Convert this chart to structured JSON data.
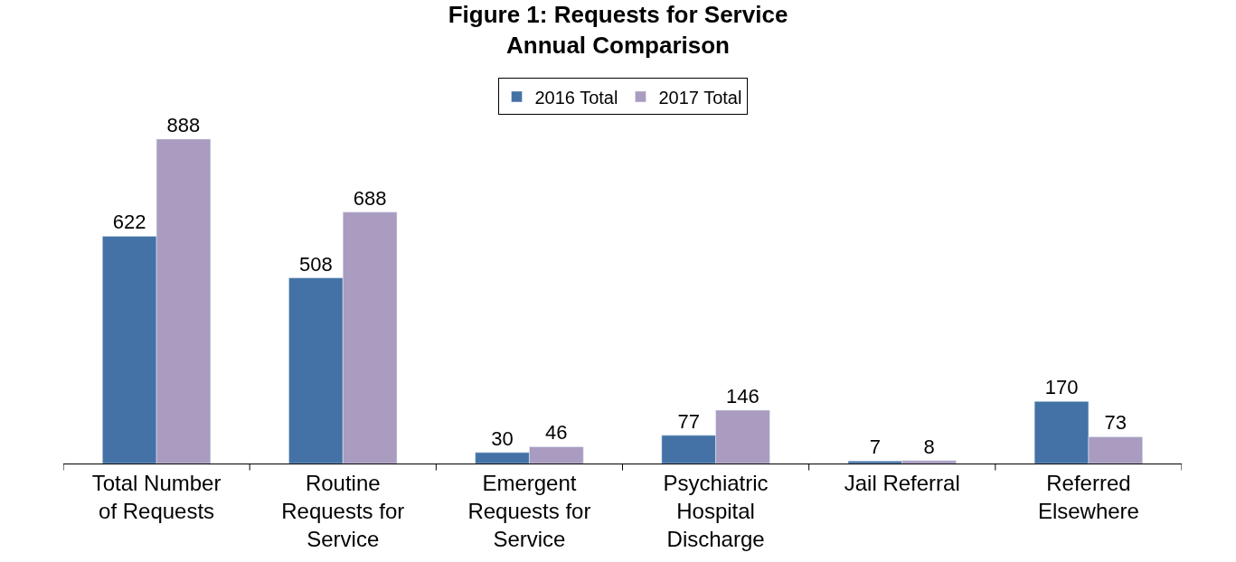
{
  "chart_data": {
    "type": "bar",
    "title": "Figure 1: Requests for Service\nAnnual Comparison",
    "categories": [
      "Total Number of Requests",
      "Routine Requests for Service",
      "Emergent Requests for Service",
      "Psychiatric Hospital Discharge",
      "Jail Referral",
      "Referred Elsewhere"
    ],
    "series": [
      {
        "name": "2016 Total",
        "color": "#4472a6",
        "values": [
          622,
          508,
          30,
          77,
          7,
          170
        ]
      },
      {
        "name": "2017 Total",
        "color": "#a99cc0",
        "values": [
          888,
          688,
          46,
          146,
          8,
          73
        ]
      }
    ],
    "data_labels": true,
    "legend": "top",
    "tick_labels": "x"
  }
}
